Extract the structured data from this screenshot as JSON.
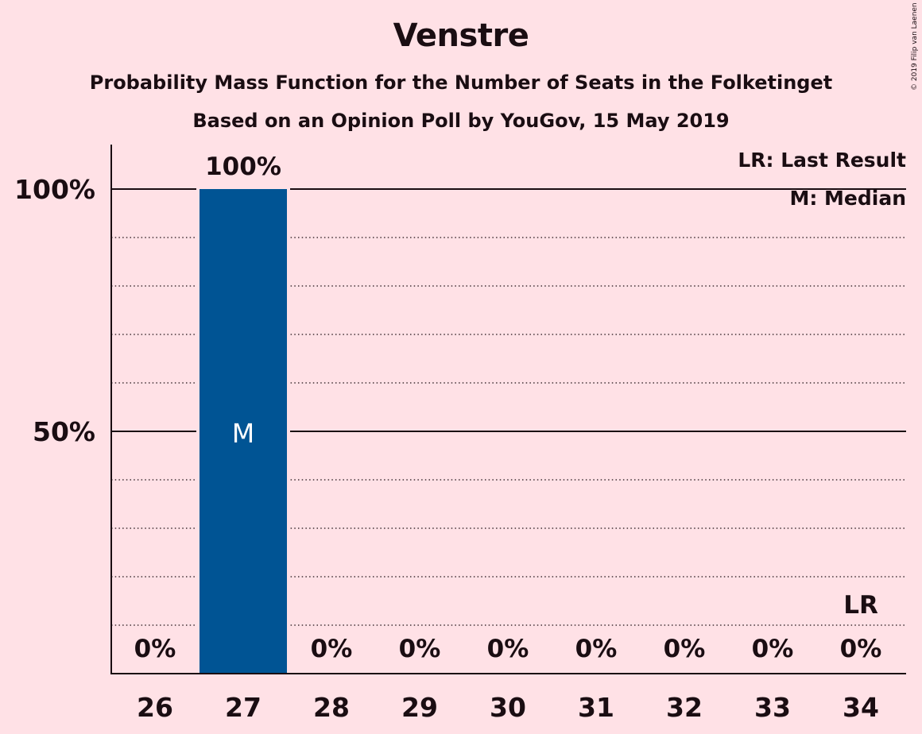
{
  "title": "Venstre",
  "subtitle": "Probability Mass Function for the Number of Seats in the Folketinget",
  "poll_line": "Based on an Opinion Poll by YouGov, 15 May 2019",
  "copyright": "© 2019 Filip van Laenen",
  "legend": {
    "last_result": "LR: Last Result",
    "median": "M: Median"
  },
  "colors": {
    "background": "#FFE1E6",
    "bar": "#005494",
    "text": "#1a0d12"
  },
  "chart_data": {
    "type": "bar",
    "title": "Venstre",
    "subtitle": "Probability Mass Function for the Number of Seats in the Folketinget",
    "categories": [
      "26",
      "27",
      "28",
      "29",
      "30",
      "31",
      "32",
      "33",
      "34"
    ],
    "values": [
      0,
      100,
      0,
      0,
      0,
      0,
      0,
      0,
      0
    ],
    "value_labels": [
      "0%",
      "100%",
      "0%",
      "0%",
      "0%",
      "0%",
      "0%",
      "0%",
      "0%"
    ],
    "ylim": [
      0,
      100
    ],
    "yticks": [
      {
        "value": 50,
        "label": "50%"
      },
      {
        "value": 100,
        "label": "100%"
      }
    ],
    "minor_gridlines": [
      10,
      20,
      30,
      40,
      60,
      70,
      80,
      90
    ],
    "median_seat": "27",
    "median_marker": "M",
    "last_result_seat": "34",
    "last_result_marker": "LR",
    "legend_placement": "top-right"
  }
}
